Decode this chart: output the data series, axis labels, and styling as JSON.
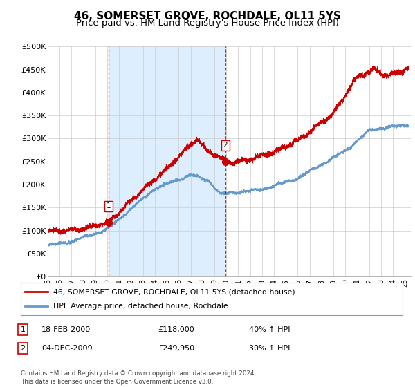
{
  "title": "46, SOMERSET GROVE, ROCHDALE, OL11 5YS",
  "subtitle": "Price paid vs. HM Land Registry's House Price Index (HPI)",
  "ylim": [
    0,
    500000
  ],
  "yticks": [
    0,
    50000,
    100000,
    150000,
    200000,
    250000,
    300000,
    350000,
    400000,
    450000,
    500000
  ],
  "ytick_labels": [
    "£0",
    "£50K",
    "£100K",
    "£150K",
    "£200K",
    "£250K",
    "£300K",
    "£350K",
    "£400K",
    "£450K",
    "£500K"
  ],
  "xlim_start": 1995.0,
  "xlim_end": 2025.5,
  "sale1_x": 2000.13,
  "sale1_y": 118000,
  "sale2_x": 2009.92,
  "sale2_y": 249950,
  "red_line_color": "#cc0000",
  "blue_line_color": "#6699cc",
  "shade_color": "#ddeeff",
  "vline_color": "#cc0000",
  "grid_color": "#cccccc",
  "bg_color": "#ffffff",
  "legend_label_red": "46, SOMERSET GROVE, ROCHDALE, OL11 5YS (detached house)",
  "legend_label_blue": "HPI: Average price, detached house, Rochdale",
  "table_row1": [
    "1",
    "18-FEB-2000",
    "£118,000",
    "40% ↑ HPI"
  ],
  "table_row2": [
    "2",
    "04-DEC-2009",
    "£249,950",
    "30% ↑ HPI"
  ],
  "footer": "Contains HM Land Registry data © Crown copyright and database right 2024.\nThis data is licensed under the Open Government Licence v3.0.",
  "title_fontsize": 11,
  "subtitle_fontsize": 9.5
}
